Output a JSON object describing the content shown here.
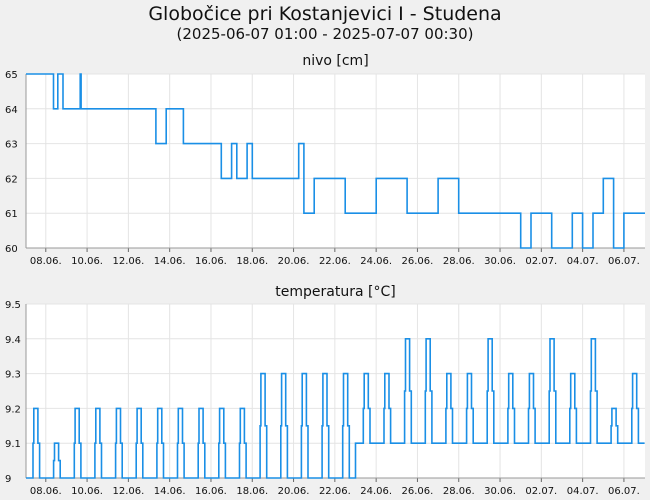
{
  "header": {
    "title": "Globočice pri Kostanjevici I - Studena",
    "subtitle": "(2025-06-07 01:00 - 2025-07-07 00:30)"
  },
  "chart_data": [
    {
      "type": "line",
      "title": "nivo [cm]",
      "xlabel": "",
      "ylabel": "",
      "x_start": "2025-06-07 01:00",
      "x_end": "2025-07-07 00:30",
      "x_tick_labels": [
        "08.06.",
        "10.06.",
        "12.06.",
        "14.06.",
        "16.06.",
        "18.06.",
        "20.06.",
        "22.06.",
        "24.06.",
        "26.06.",
        "28.06.",
        "30.06.",
        "02.07.",
        "04.07.",
        "06.07."
      ],
      "ylim": [
        60,
        65
      ],
      "y_ticks": [
        60,
        61,
        62,
        63,
        64,
        65
      ],
      "grid": true,
      "color": "#1a8fe6",
      "series": [
        {
          "x": [
            "2025-06-07 01:00",
            "2025-06-08 08:00",
            "2025-06-08 09:00",
            "2025-06-08 14:00",
            "2025-06-08 20:00",
            "2025-06-09 00:00",
            "2025-06-09 16:00",
            "2025-06-09 17:00",
            "2025-06-10 00:00",
            "2025-06-13 06:00",
            "2025-06-13 08:00",
            "2025-06-13 20:00",
            "2025-06-14 16:00",
            "2025-06-15 00:00",
            "2025-06-16 00:00",
            "2025-06-16 12:00",
            "2025-06-17 00:00",
            "2025-06-17 06:00",
            "2025-06-17 18:00",
            "2025-06-18 00:00",
            "2025-06-18 12:00",
            "2025-06-19 12:00",
            "2025-06-20 00:00",
            "2025-06-20 06:00",
            "2025-06-20 12:00",
            "2025-06-21 00:00",
            "2025-06-22 12:00",
            "2025-06-24 00:00",
            "2025-06-25 12:00",
            "2025-06-27 00:00",
            "2025-06-28 00:00",
            "2025-06-29 12:00",
            "2025-06-30 12:00",
            "2025-07-01 00:00",
            "2025-07-01 12:00",
            "2025-07-02 12:00",
            "2025-07-03 12:00",
            "2025-07-04 00:00",
            "2025-07-04 12:00",
            "2025-07-05 00:00",
            "2025-07-05 12:00",
            "2025-07-06 00:00",
            "2025-07-06 12:00",
            "2025-07-07 00:30"
          ],
          "values": [
            65,
            65,
            64,
            65,
            64,
            64,
            65,
            64,
            64,
            64,
            63,
            64,
            63,
            63,
            63,
            62,
            63,
            62,
            63,
            62,
            62,
            62,
            62,
            63,
            61,
            62,
            61,
            62,
            61,
            62,
            61,
            61,
            61,
            60,
            61,
            60,
            61,
            60,
            61,
            62,
            60,
            61,
            61,
            61
          ]
        }
      ]
    },
    {
      "type": "line",
      "title": "temperatura [°C]",
      "xlabel": "",
      "ylabel": "",
      "x_start": "2025-06-07 01:00",
      "x_end": "2025-07-07 00:30",
      "x_tick_labels": [
        "08.06.",
        "10.06.",
        "12.06.",
        "14.06.",
        "16.06.",
        "18.06.",
        "20.06.",
        "22.06.",
        "24.06.",
        "26.06.",
        "28.06.",
        "30.06.",
        "02.07.",
        "04.07.",
        "06.07."
      ],
      "ylim": [
        9.0,
        9.5
      ],
      "y_ticks": [
        9,
        9.1,
        9.2,
        9.3,
        9.4,
        9.5
      ],
      "grid": true,
      "color": "#1a8fe6",
      "series": [
        {
          "daily_peak_dates": [
            "2025-06-07",
            "2025-06-08",
            "2025-06-09",
            "2025-06-10",
            "2025-06-11",
            "2025-06-12",
            "2025-06-13",
            "2025-06-14",
            "2025-06-15",
            "2025-06-16",
            "2025-06-17",
            "2025-06-18",
            "2025-06-19",
            "2025-06-20",
            "2025-06-21",
            "2025-06-22",
            "2025-06-23",
            "2025-06-24",
            "2025-06-25",
            "2025-06-26",
            "2025-06-27",
            "2025-06-28",
            "2025-06-29",
            "2025-06-30",
            "2025-07-01",
            "2025-07-02",
            "2025-07-03",
            "2025-07-04",
            "2025-07-05",
            "2025-07-06"
          ],
          "daily_peaks": [
            9.2,
            9.1,
            9.2,
            9.2,
            9.2,
            9.2,
            9.2,
            9.2,
            9.2,
            9.2,
            9.2,
            9.3,
            9.3,
            9.3,
            9.3,
            9.3,
            9.3,
            9.3,
            9.4,
            9.4,
            9.3,
            9.3,
            9.4,
            9.3,
            9.3,
            9.4,
            9.3,
            9.4,
            9.2,
            9.3
          ],
          "daily_minima": [
            9.0,
            9.0,
            9.0,
            9.0,
            9.0,
            9.0,
            9.0,
            9.0,
            9.0,
            9.0,
            9.0,
            9.0,
            9.0,
            9.0,
            9.0,
            9.0,
            9.1,
            9.1,
            9.1,
            9.1,
            9.1,
            9.1,
            9.1,
            9.1,
            9.1,
            9.1,
            9.1,
            9.1,
            9.1,
            9.1
          ]
        }
      ]
    }
  ]
}
